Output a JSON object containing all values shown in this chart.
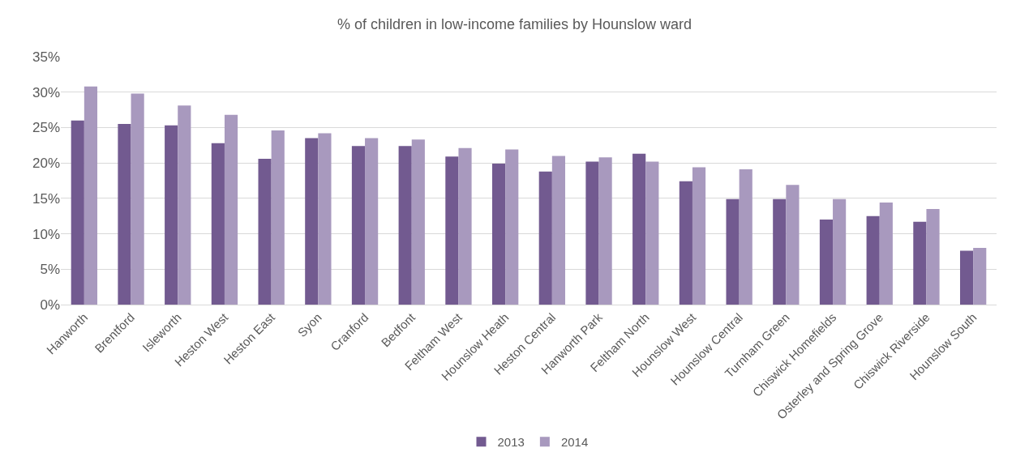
{
  "chart_data": {
    "type": "bar",
    "title": "% of children in low-income families by Hounslow ward",
    "categories": [
      "Hanworth",
      "Brentford",
      "Isleworth",
      "Heston West",
      "Heston East",
      "Syon",
      "Cranford",
      "Bedfont",
      "Feltham West",
      "Hounslow Heath",
      "Heston Central",
      "Hanworth Park",
      "Feltham North",
      "Hounslow West",
      "Hounslow Central",
      "Turnham Green",
      "Chiswick Homefields",
      "Osterley and Spring Grove",
      "Chiswick Riverside",
      "Hounslow South"
    ],
    "series": [
      {
        "name": "2013",
        "color": "#725a90",
        "values": [
          26.0,
          25.5,
          25.3,
          22.8,
          20.6,
          23.5,
          22.4,
          22.4,
          20.9,
          19.9,
          18.8,
          20.2,
          21.3,
          17.4,
          14.9,
          14.9,
          12.0,
          12.5,
          11.7,
          7.6
        ]
      },
      {
        "name": "2014",
        "color": "#a899be",
        "values": [
          30.8,
          29.8,
          28.1,
          26.8,
          24.6,
          24.2,
          23.5,
          23.3,
          22.1,
          21.9,
          21.0,
          20.8,
          20.2,
          19.4,
          19.1,
          16.9,
          14.9,
          14.4,
          13.5,
          8.0
        ]
      }
    ],
    "ylim": [
      0,
      35
    ],
    "yticks": [
      {
        "value": 0,
        "label": "0%"
      },
      {
        "value": 5,
        "label": "5%"
      },
      {
        "value": 10,
        "label": "10%"
      },
      {
        "value": 15,
        "label": "15%"
      },
      {
        "value": 20,
        "label": "20%"
      },
      {
        "value": 25,
        "label": "25%"
      },
      {
        "value": 30,
        "label": "30%"
      },
      {
        "value": 35,
        "label": "35%"
      }
    ],
    "grid": "y",
    "legend": "bottom"
  }
}
